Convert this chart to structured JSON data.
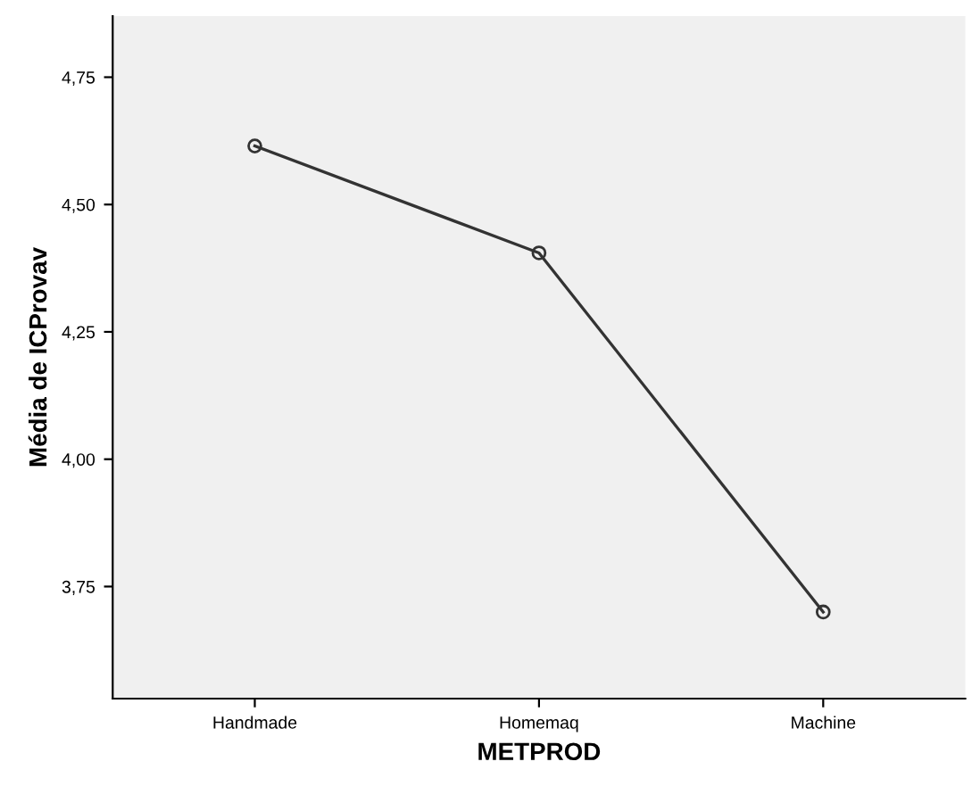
{
  "chart_data": {
    "type": "line",
    "xlabel": "METPROD",
    "ylabel": "Média de ICProvav",
    "categories": [
      "Handmade",
      "Homemaq",
      "Machine"
    ],
    "series": [
      {
        "color": "#333333",
        "values": [
          4.615,
          4.405,
          3.7
        ]
      }
    ],
    "ylim": [
      3.53,
      4.87
    ],
    "yticks": [
      {
        "value": 3.75,
        "label": "3,75"
      },
      {
        "value": 4.0,
        "label": "4,00"
      },
      {
        "value": 4.25,
        "label": "4,25"
      },
      {
        "value": 4.5,
        "label": "4,50"
      },
      {
        "value": 4.75,
        "label": "4,75"
      }
    ],
    "marker": "circle",
    "line_style": "solid",
    "grid": false,
    "legend": false
  }
}
